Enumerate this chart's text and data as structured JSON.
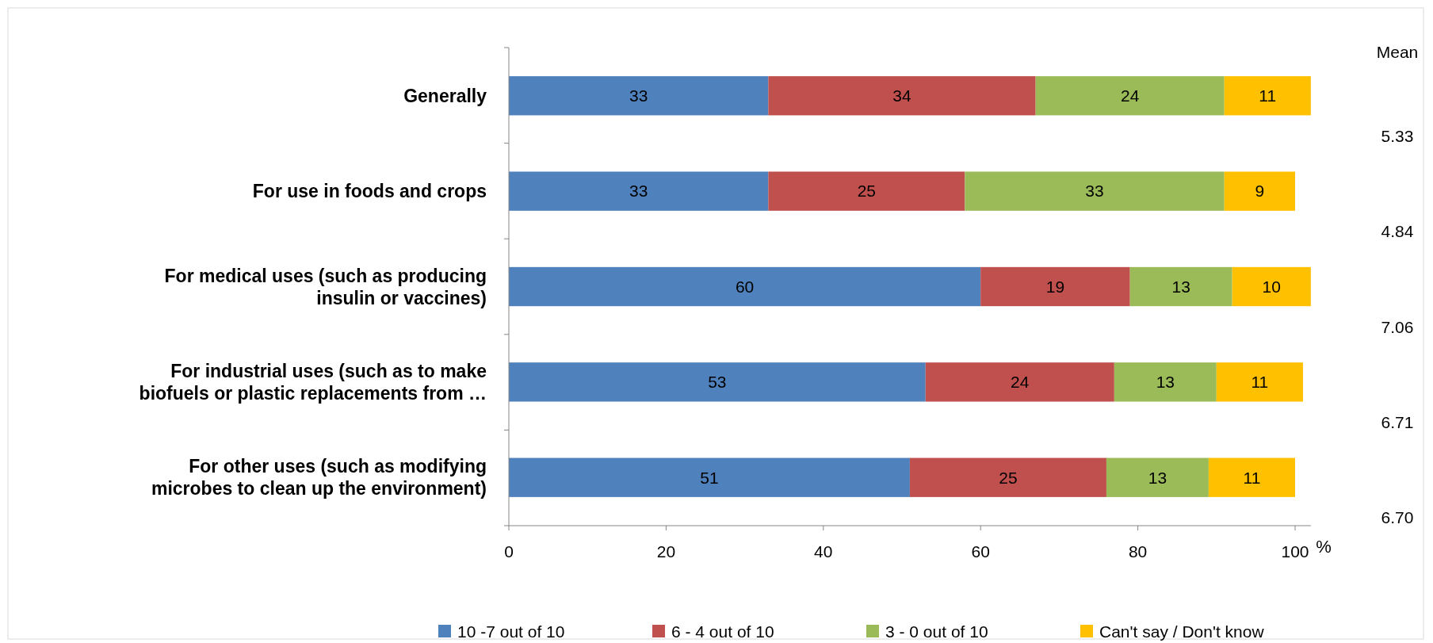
{
  "chart_data": {
    "type": "bar",
    "orientation": "horizontal",
    "stacked": true,
    "xlabel": "%",
    "categories": [
      "Generally",
      "For use in foods and crops",
      "For medical uses (such as producing insulin or vaccines)",
      "For industrial uses (such as to make biofuels or plastic replacements from …",
      "For other uses (such as modifying microbes to clean up the environment)"
    ],
    "series": [
      {
        "name": "10 -7 out of 10",
        "color": "#4f81bd",
        "values": [
          33,
          33,
          60,
          53,
          51
        ]
      },
      {
        "name": "6 - 4 out of 10",
        "color": "#c0504d",
        "values": [
          34,
          25,
          19,
          24,
          25
        ]
      },
      {
        "name": "3 - 0 out of 10",
        "color": "#9bbb59",
        "values": [
          24,
          33,
          13,
          13,
          13
        ]
      },
      {
        "name": "Can't say / Don't know",
        "color": "#ffc000",
        "values": [
          11,
          9,
          10,
          11,
          11
        ]
      }
    ],
    "xlim": [
      0,
      102
    ],
    "xticks": [
      0,
      20,
      40,
      60,
      80,
      100
    ],
    "data_labels": true,
    "grid": false,
    "legend": "bottom",
    "annotations": [
      "Mean",
      "5.33",
      "4.84",
      "7.06",
      "6.71",
      "6.70"
    ]
  }
}
